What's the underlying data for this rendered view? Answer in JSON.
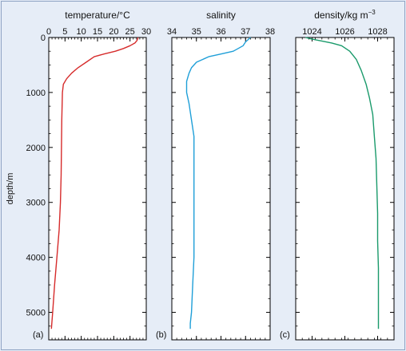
{
  "chart_data": [
    {
      "type": "line",
      "panel_label": "(a)",
      "title": "temperature/°C",
      "ylabel": "depth/m",
      "xlim": [
        0,
        30
      ],
      "ylim": [
        5500,
        0
      ],
      "xticks": [
        0,
        5,
        10,
        15,
        20,
        25,
        30
      ],
      "yticks": [
        0,
        1000,
        2000,
        3000,
        4000,
        5000
      ],
      "color": "#d62b2b",
      "series": [
        {
          "x": [
            27.5,
            27.2,
            26.5,
            25.0,
            23.0,
            20.5,
            17.0,
            14.0,
            11.5,
            9.0,
            7.0,
            5.5,
            4.5,
            4.2,
            4.0,
            3.9,
            3.8,
            3.6,
            3.2,
            2.5,
            1.8,
            1.2,
            0.8
          ],
          "y": [
            0,
            50,
            100,
            150,
            200,
            250,
            300,
            350,
            450,
            550,
            650,
            750,
            850,
            1000,
            1500,
            2000,
            2500,
            3000,
            3500,
            4000,
            4500,
            5000,
            5300
          ]
        }
      ]
    },
    {
      "type": "line",
      "panel_label": "(b)",
      "title": "salinity",
      "xlim": [
        34,
        38
      ],
      "ylim": [
        5500,
        0
      ],
      "xticks": [
        34,
        35,
        36,
        37,
        38
      ],
      "yticks": [
        0,
        1000,
        2000,
        3000,
        4000,
        5000
      ],
      "color": "#1f9fd8",
      "series": [
        {
          "x": [
            37.2,
            37.0,
            36.9,
            36.7,
            36.5,
            36.0,
            35.5,
            35.0,
            34.8,
            34.7,
            34.6,
            34.6,
            34.7,
            34.8,
            34.9,
            34.9,
            34.9,
            34.9,
            34.9,
            34.9,
            34.85,
            34.8,
            34.75,
            34.75
          ],
          "y": [
            0,
            80,
            150,
            200,
            250,
            300,
            350,
            450,
            550,
            650,
            800,
            1000,
            1200,
            1500,
            1800,
            2000,
            2500,
            3000,
            3500,
            4000,
            4500,
            5000,
            5200,
            5300
          ]
        }
      ]
    },
    {
      "type": "line",
      "panel_label": "(c)",
      "title": "density/kg m",
      "title_superscript": "−3",
      "xlim": [
        1023,
        1029
      ],
      "ylim": [
        5500,
        0
      ],
      "xticks": [
        1024,
        1026,
        1028
      ],
      "yticks": [
        0,
        1000,
        2000,
        3000,
        4000,
        5000
      ],
      "color": "#1a9a6b",
      "series": [
        {
          "x": [
            1023.6,
            1024.0,
            1024.5,
            1025.2,
            1025.8,
            1026.3,
            1026.7,
            1027.0,
            1027.3,
            1027.5,
            1027.7,
            1027.8,
            1027.9,
            1027.95,
            1028.0,
            1028.0,
            1028.05,
            1028.05,
            1028.05,
            1028.05
          ],
          "y": [
            0,
            30,
            60,
            100,
            150,
            250,
            400,
            600,
            850,
            1100,
            1400,
            1800,
            2200,
            2700,
            3200,
            3700,
            4200,
            4700,
            5000,
            5300
          ]
        }
      ]
    }
  ]
}
